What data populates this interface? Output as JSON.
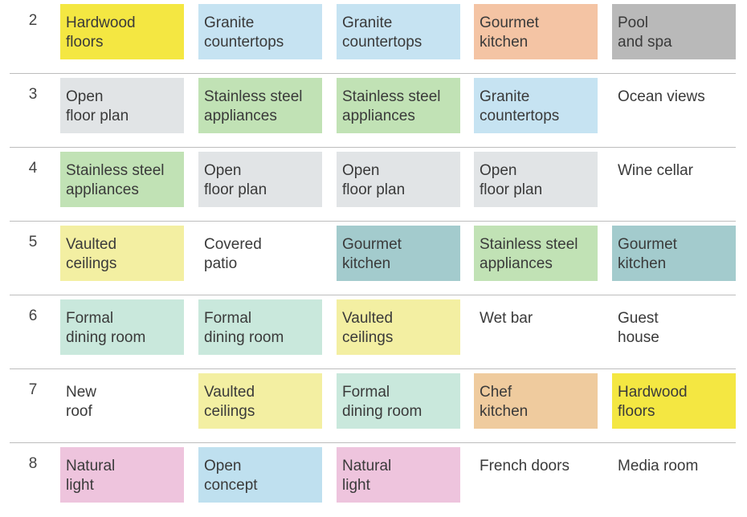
{
  "rows": [
    {
      "number": "2",
      "cells": [
        {
          "text": "Hardwood\nfloors",
          "color": "#f4e742"
        },
        {
          "text": "Granite\ncountertops",
          "color": "#c6e3f2"
        },
        {
          "text": "Granite\ncountertops",
          "color": "#c6e3f2"
        },
        {
          "text": "Gourmet\nkitchen",
          "color": "#f4c4a4"
        },
        {
          "text": "Pool\nand spa",
          "color": "#b9b9b9"
        }
      ]
    },
    {
      "number": "3",
      "cells": [
        {
          "text": "Open\nfloor plan",
          "color": "#e1e4e6"
        },
        {
          "text": "Stainless steel\nappliances",
          "color": "#c1e2b5"
        },
        {
          "text": "Stainless steel\nappliances",
          "color": "#c1e2b5"
        },
        {
          "text": "Granite\ncountertops",
          "color": "#c6e3f2"
        },
        {
          "text": "Ocean views",
          "color": ""
        }
      ]
    },
    {
      "number": "4",
      "cells": [
        {
          "text": "Stainless steel\nappliances",
          "color": "#c1e2b5"
        },
        {
          "text": "Open\nfloor plan",
          "color": "#e1e4e6"
        },
        {
          "text": "Open\nfloor plan",
          "color": "#e1e4e6"
        },
        {
          "text": "Open\nfloor plan",
          "color": "#e1e4e6"
        },
        {
          "text": "Wine cellar",
          "color": ""
        }
      ]
    },
    {
      "number": "5",
      "cells": [
        {
          "text": "Vaulted\nceilings",
          "color": "#f3efa2"
        },
        {
          "text": "Covered\npatio",
          "color": ""
        },
        {
          "text": "Gourmet\nkitchen",
          "color": "#a3cbcd"
        },
        {
          "text": "Stainless steel\nappliances",
          "color": "#c1e2b5"
        },
        {
          "text": "Gourmet\nkitchen",
          "color": "#a3cbcd"
        }
      ]
    },
    {
      "number": "6",
      "cells": [
        {
          "text": "Formal\ndining room",
          "color": "#c9e8dc"
        },
        {
          "text": "Formal\ndining room",
          "color": "#c9e8dc"
        },
        {
          "text": "Vaulted\nceilings",
          "color": "#f3efa2"
        },
        {
          "text": "Wet bar",
          "color": ""
        },
        {
          "text": "Guest\nhouse",
          "color": ""
        }
      ]
    },
    {
      "number": "7",
      "cells": [
        {
          "text": "New\nroof",
          "color": ""
        },
        {
          "text": "Vaulted\nceilings",
          "color": "#f3efa2"
        },
        {
          "text": "Formal\ndining room",
          "color": "#c9e8dc"
        },
        {
          "text": "Chef\nkitchen",
          "color": "#efcb9e"
        },
        {
          "text": "Hardwood\nfloors",
          "color": "#f4e742"
        }
      ]
    },
    {
      "number": "8",
      "cells": [
        {
          "text": "Natural\nlight",
          "color": "#eec4dd"
        },
        {
          "text": "Open\nconcept",
          "color": "#bfe0ef"
        },
        {
          "text": "Natural\nlight",
          "color": "#eec4dd"
        },
        {
          "text": "French doors",
          "color": ""
        },
        {
          "text": "Media room",
          "color": ""
        }
      ]
    }
  ]
}
